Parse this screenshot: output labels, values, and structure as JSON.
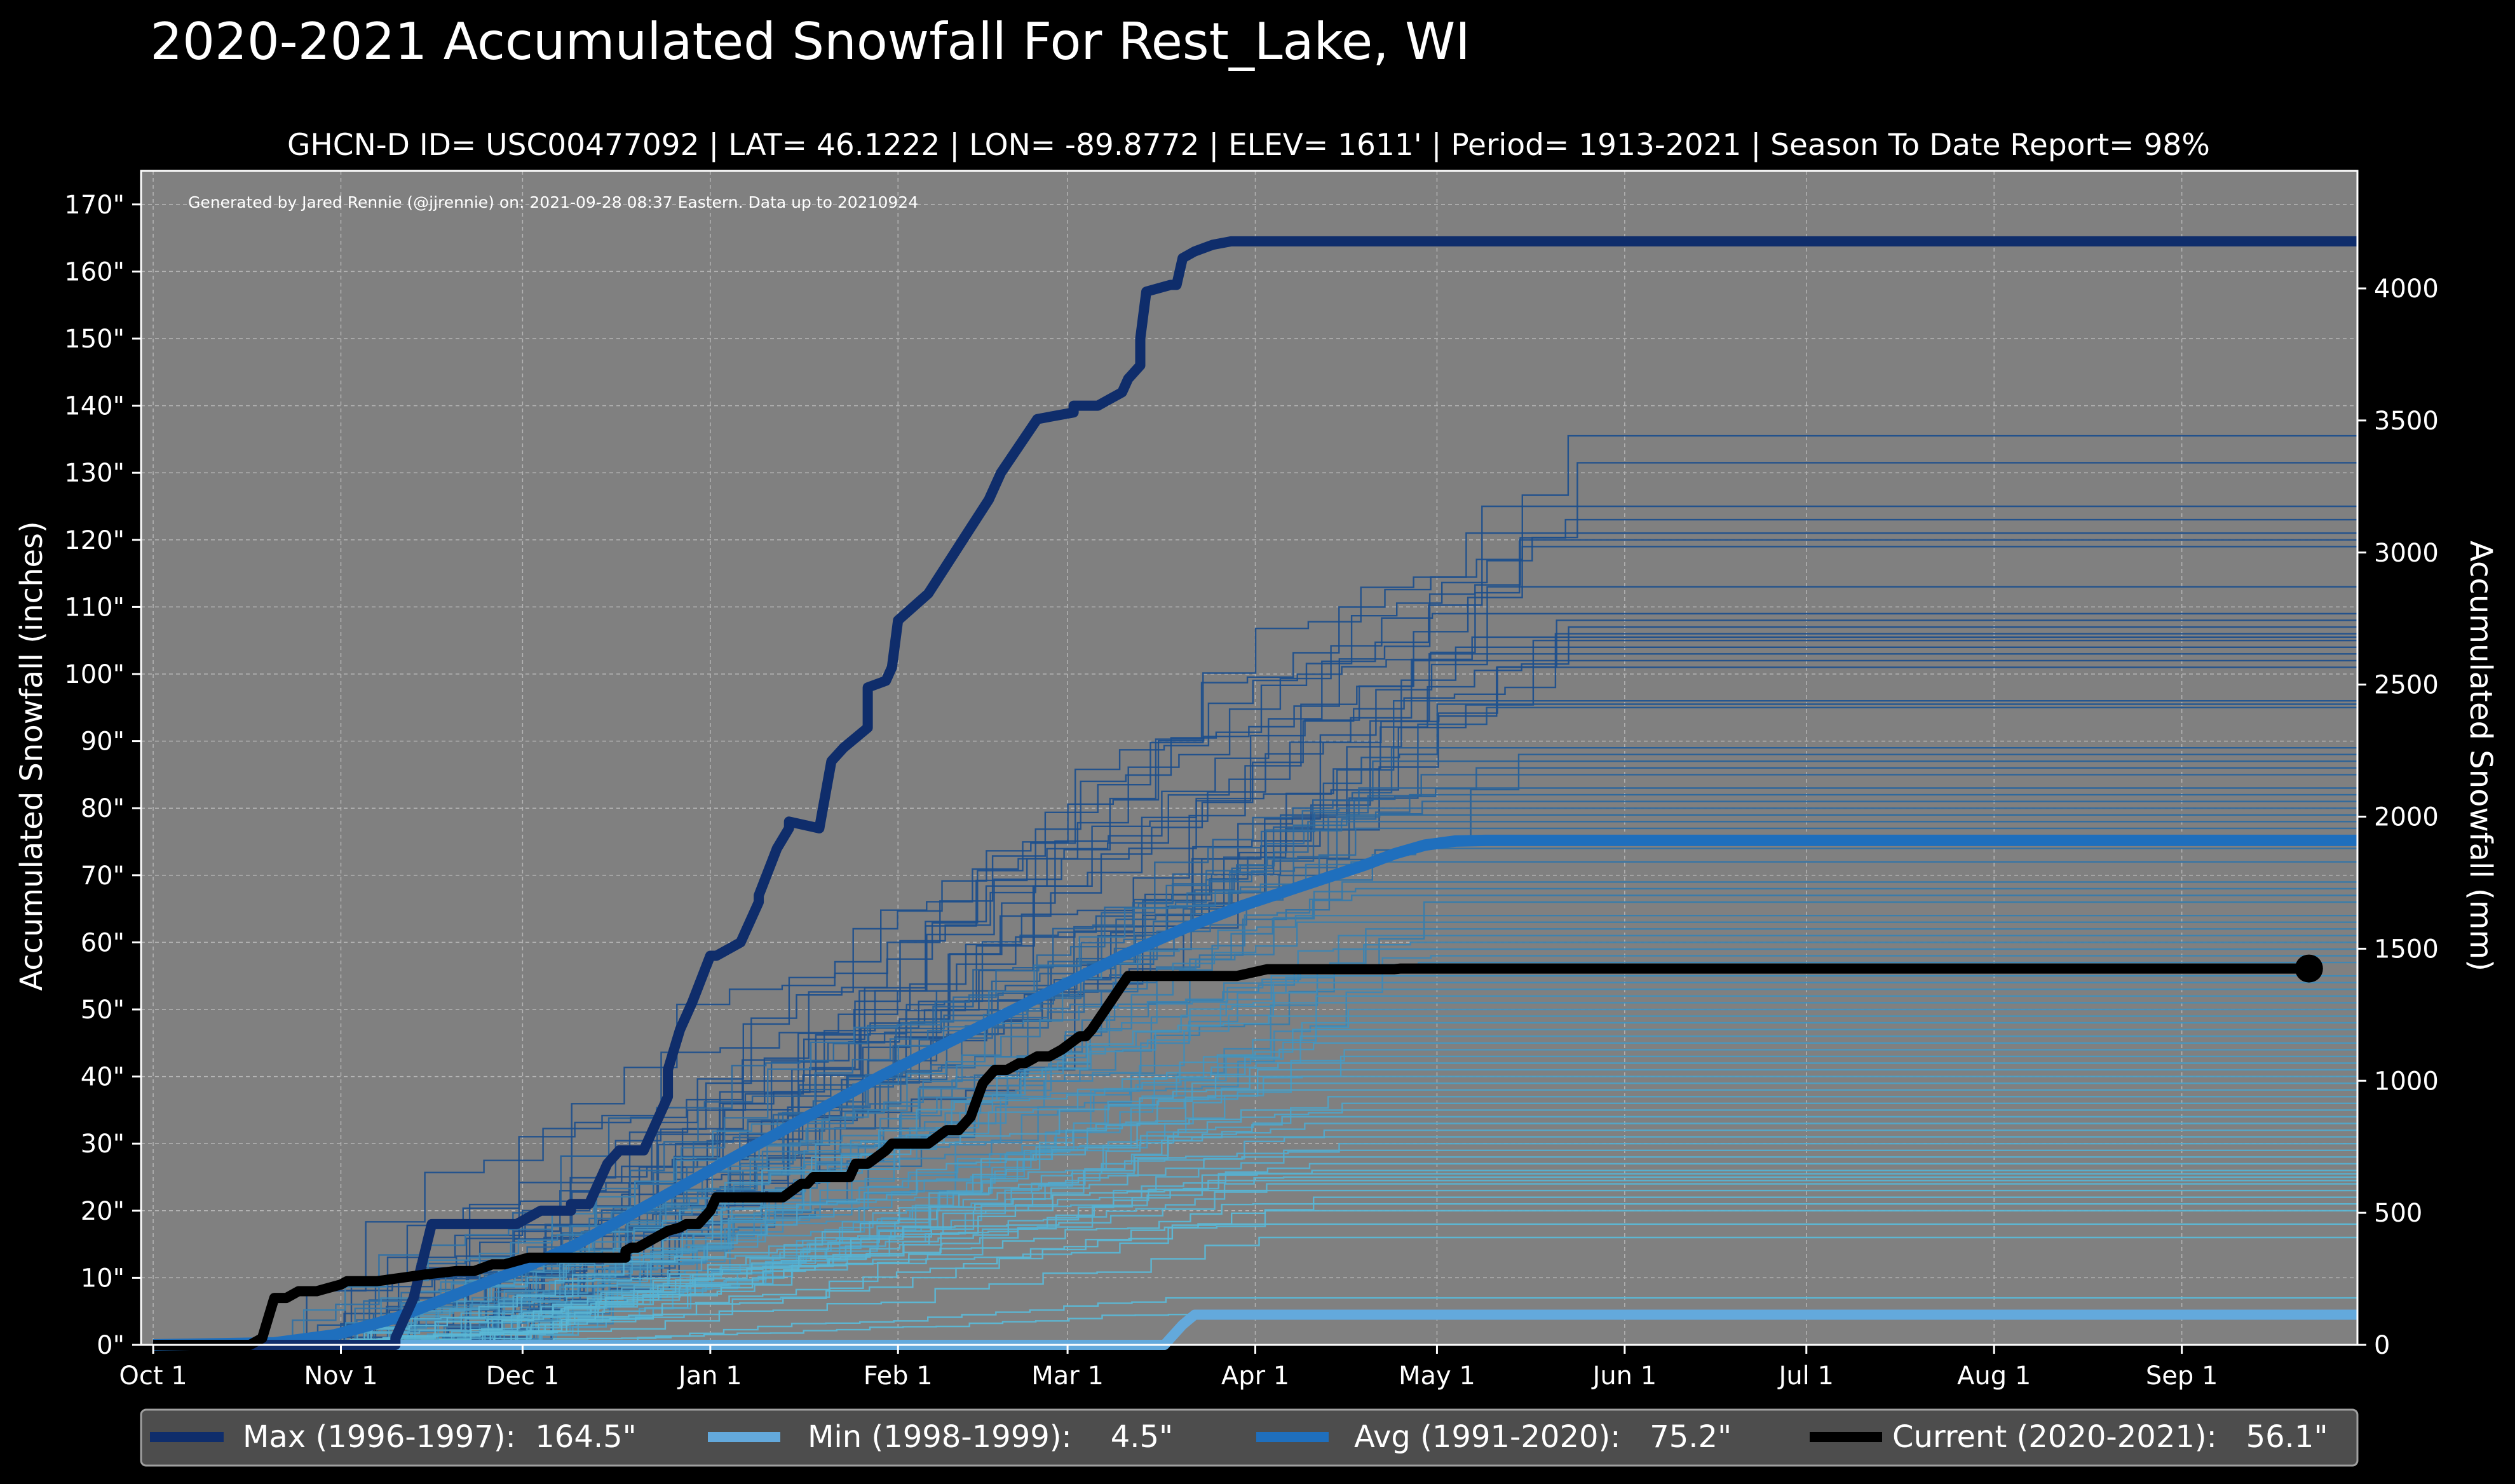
{
  "chart_data": {
    "type": "line",
    "title": "2020-2021 Accumulated Snowfall For Rest_Lake, WI",
    "subtitle": "GHCN-D ID= USC00477092 | LAT= 46.1222 | LON= -89.8772 | ELEV= 1611' | Period= 1913-2021 | Season To Date Report= 98%",
    "credit": "Generated by Jared Rennie (@jjrennie) on: 2021-09-28 08:37 Eastern. Data up to 20210924",
    "ylabel": "Accumulated Snowfall (inches)",
    "ylabel_right": "Accumulated Snowfall (mm)",
    "xlabel": "",
    "x_unit": "days since Oct 1",
    "xlim": [
      -2,
      364
    ],
    "ylim": [
      0,
      175
    ],
    "y_ticks": [
      0,
      10,
      20,
      30,
      40,
      50,
      60,
      70,
      80,
      90,
      100,
      110,
      120,
      130,
      140,
      150,
      160,
      170
    ],
    "y_tick_labels": [
      "0\"",
      "10\"",
      "20\"",
      "30\"",
      "40\"",
      "50\"",
      "60\"",
      "70\"",
      "80\"",
      "90\"",
      "100\"",
      "110\"",
      "120\"",
      "130\"",
      "140\"",
      "150\"",
      "160\"",
      "170\""
    ],
    "y2_ticks_mm": [
      0,
      500,
      1000,
      1500,
      2000,
      2500,
      3000,
      3500,
      4000
    ],
    "y2_tick_labels": [
      "0",
      "500",
      "1000",
      "1500",
      "2000",
      "2500",
      "3000",
      "3500",
      "4000"
    ],
    "x_ticks": [
      0,
      31,
      61,
      92,
      123,
      151,
      182,
      212,
      243,
      273,
      304,
      335
    ],
    "x_tick_labels": [
      "Oct 1",
      "Nov 1",
      "Dec 1",
      "Jan 1",
      "Feb 1",
      "Mar 1",
      "Apr 1",
      "May 1",
      "Jun 1",
      "Jul 1",
      "Aug 1",
      "Sep 1"
    ],
    "grid": true,
    "legend_position": "bottom",
    "background_season_lines": {
      "description": "One thin line per historical season 1913-2021",
      "color_dark": "#1d4f8c",
      "color_light": "#5bb8d6",
      "final_totals": [
        135.5,
        131.5,
        125,
        123,
        121,
        120,
        119,
        113,
        109,
        108,
        107,
        106,
        105.5,
        105,
        104,
        103,
        102,
        101,
        96,
        95.5,
        95,
        89,
        88,
        87,
        86,
        85,
        83,
        82,
        81,
        80,
        79,
        78,
        77,
        74,
        72,
        69,
        68,
        67,
        66,
        64,
        63,
        62,
        61,
        60,
        59,
        58,
        57,
        55,
        54,
        53,
        52,
        51,
        50,
        49,
        48,
        47,
        46,
        45,
        44,
        43,
        42,
        41,
        40,
        39,
        38,
        37,
        36,
        35,
        34,
        33,
        32,
        31,
        30,
        29,
        28,
        27,
        26,
        25.5,
        25,
        24.5,
        24,
        23,
        22,
        21,
        20,
        18,
        16,
        7,
        5
      ]
    },
    "series": [
      {
        "name": "Max (1996-1997)",
        "legend_label": "Max (1996-1997):  164.5\"",
        "total": 164.5,
        "color": "#0f2d6b",
        "stroke": 16,
        "x": [
          0,
          40,
          40,
          41,
          43,
          46,
          60,
          64,
          69,
          69,
          72,
          75,
          77,
          81,
          82,
          85,
          85,
          87,
          89,
          92,
          93,
          97,
          100,
          100,
          103,
          105,
          105,
          110,
          112,
          114,
          118,
          118,
          121,
          122,
          123,
          128,
          138,
          140,
          146,
          152,
          152,
          156,
          158,
          160,
          161,
          163,
          163,
          164,
          168,
          169,
          170,
          172,
          175,
          175,
          178,
          183,
          185,
          186,
          188,
          194,
          196,
          300,
          364
        ],
        "y": [
          0,
          0,
          1,
          3,
          7,
          18,
          18,
          20,
          20,
          21,
          21,
          27,
          29,
          29,
          31,
          37,
          41,
          47,
          51,
          58,
          58,
          60,
          66,
          67,
          74,
          77,
          78,
          77,
          87,
          89,
          92,
          98,
          99,
          101,
          108,
          112,
          126,
          130,
          138,
          139,
          140,
          140,
          141,
          142,
          144,
          146,
          150,
          157,
          158,
          158,
          162,
          163,
          164,
          164,
          164.5,
          164.5,
          164.5,
          164.5,
          164.5,
          164.5,
          164.5,
          164.5,
          164.5
        ]
      },
      {
        "name": "Min (1998-1999)",
        "legend_label": "Min (1998-1999):    4.5\"",
        "total": 4.5,
        "color": "#63a9dc",
        "stroke": 16,
        "x": [
          0,
          167,
          168,
          170,
          172,
          180,
          364
        ],
        "y": [
          0,
          0,
          1,
          3,
          4.5,
          4.5,
          4.5
        ]
      },
      {
        "name": "Avg (1991-2020)",
        "legend_label": "Avg (1991-2020):   75.2\"",
        "total": 75.2,
        "color": "#1f6fbd",
        "stroke": 18,
        "x": [
          0,
          20,
          30,
          40,
          50,
          60,
          70,
          80,
          90,
          100,
          110,
          120,
          130,
          140,
          150,
          160,
          170,
          180,
          190,
          200,
          205,
          210,
          215,
          220,
          364
        ],
        "y": [
          0,
          0.3,
          1.5,
          4,
          7.5,
          11,
          15,
          20,
          25,
          30,
          35,
          40,
          44.5,
          49,
          53.5,
          58,
          62,
          65.5,
          68.5,
          71.5,
          73.2,
          74.5,
          75.1,
          75.2,
          75.2
        ]
      },
      {
        "name": "Current (2020-2021)",
        "legend_label": "Current (2020-2021):   56.1\"",
        "total": 56.1,
        "color": "#000000",
        "stroke": 16,
        "x": [
          0,
          16,
          18,
          19,
          20,
          22,
          24,
          27,
          31,
          32,
          37,
          45,
          50,
          53,
          56,
          58,
          62,
          65,
          78,
          78,
          79,
          80,
          81,
          83,
          85,
          87,
          88,
          90,
          91,
          92,
          93,
          104,
          107,
          108,
          109,
          115,
          116,
          118,
          121,
          122,
          128,
          131,
          133,
          135,
          137,
          139,
          141,
          143,
          144,
          146,
          148,
          150,
          153,
          154,
          155,
          161,
          162,
          178,
          179,
          184,
          205,
          206,
          356
        ],
        "y": [
          0,
          0,
          1,
          4,
          7,
          7,
          8,
          8,
          9,
          9.5,
          9.5,
          10.5,
          11,
          11,
          12,
          12,
          13,
          13,
          13,
          14,
          14.5,
          14.5,
          15,
          16,
          17,
          17.5,
          18,
          18,
          19,
          20,
          22,
          22,
          24,
          24,
          25,
          25,
          27,
          27,
          29,
          30,
          30,
          32,
          32,
          34,
          39,
          41,
          41,
          42,
          42,
          43,
          43,
          44,
          46,
          46,
          47,
          55,
          55,
          55,
          55,
          56,
          56,
          56.1,
          56.1
        ]
      }
    ],
    "current_marker": {
      "x": 356,
      "y": 56.1
    }
  },
  "colors": {
    "background": "#000000",
    "plot_background": "#808080",
    "grid": "#b4b4b4",
    "text": "#ffffff",
    "legend_background": "#4d4d4d"
  }
}
